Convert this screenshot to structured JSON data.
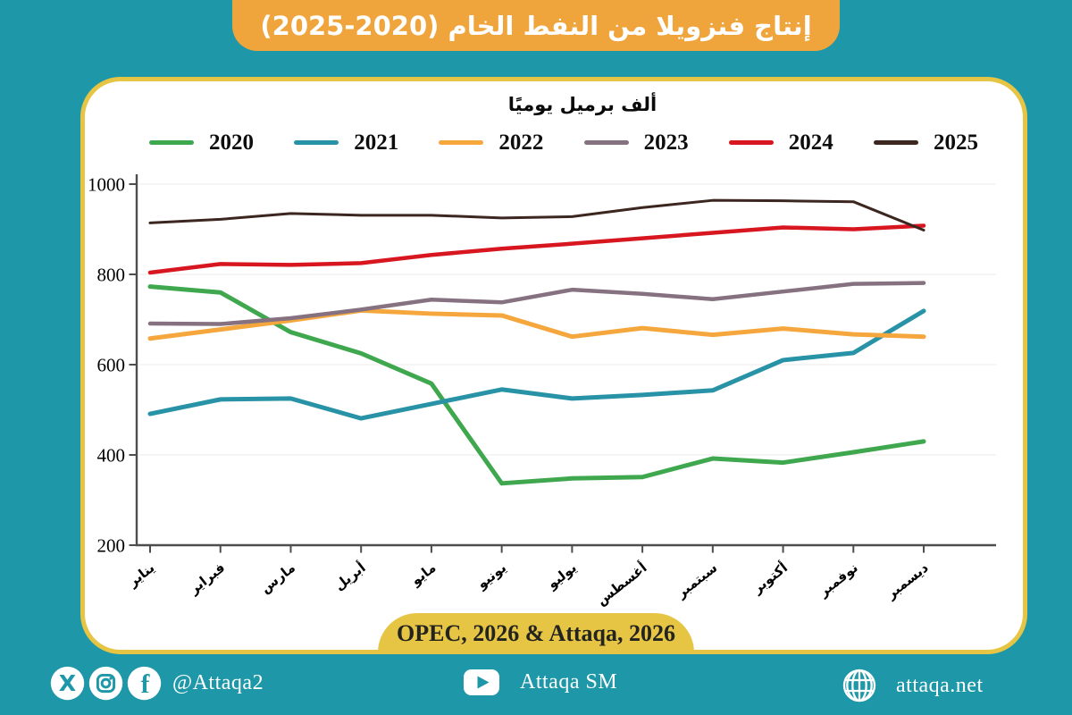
{
  "banner": {
    "title": "إنتاج فنزويلا من النفط الخام (2020-2025)"
  },
  "chart_data": {
    "type": "line",
    "title": "إنتاج فنزويلا من النفط الخام (2020-2025)",
    "subtitle": "ألف برميل يوميًا",
    "categories": [
      "يناير",
      "فبراير",
      "مارس",
      "أبريل",
      "مايو",
      "يونيو",
      "يوليو",
      "أغسطس",
      "سبتمبر",
      "أكتوبر",
      "نوفمبر",
      "ديسمبر"
    ],
    "ylim": [
      200,
      1000
    ],
    "yticks": [
      1000,
      800,
      600,
      400,
      200
    ],
    "grid": "very-faint-horizontal",
    "legend_position": "top",
    "series": [
      {
        "name": "2020",
        "color": "#3fa84f",
        "stroke_width": 5,
        "values": [
          773,
          760,
          672,
          625,
          558,
          337,
          348,
          351,
          392,
          383,
          406,
          430
        ]
      },
      {
        "name": "2021",
        "color": "#2893a7",
        "stroke_width": 5,
        "values": [
          491,
          523,
          525,
          481,
          513,
          545,
          525,
          533,
          543,
          610,
          626,
          719
        ]
      },
      {
        "name": "2022",
        "color": "#f5a73e",
        "stroke_width": 5,
        "values": [
          658,
          678,
          698,
          720,
          713,
          709,
          662,
          681,
          666,
          680,
          667,
          662
        ]
      },
      {
        "name": "2023",
        "color": "#85717f",
        "stroke_width": 4.5,
        "values": [
          691,
          690,
          703,
          722,
          744,
          738,
          766,
          757,
          745,
          762,
          779,
          781
        ]
      },
      {
        "name": "2024",
        "color": "#d7161f",
        "stroke_width": 4.5,
        "values": [
          804,
          823,
          821,
          825,
          843,
          857,
          868,
          880,
          892,
          904,
          900,
          908
        ]
      },
      {
        "name": "2025",
        "color": "#3c2620",
        "stroke_width": 3,
        "values": [
          914,
          922,
          935,
          931,
          931,
          925,
          928,
          948,
          964,
          963,
          961,
          898
        ]
      }
    ]
  },
  "footer": {
    "source": "OPEC, 2026 & Attaqa, 2026"
  },
  "bottom_bar": {
    "handle": "@Attaqa2",
    "youtube_label": "Attaqa SM",
    "website": "attaqa.net",
    "icons": [
      "x-icon",
      "instagram-icon",
      "facebook-icon",
      "youtube-icon",
      "globe-icon"
    ]
  },
  "colors": {
    "background_teal": "#1e97a8",
    "banner_orange": "#f0a43c",
    "card_yellow": "#e6c545",
    "axis_gray": "#4d4d4d"
  }
}
